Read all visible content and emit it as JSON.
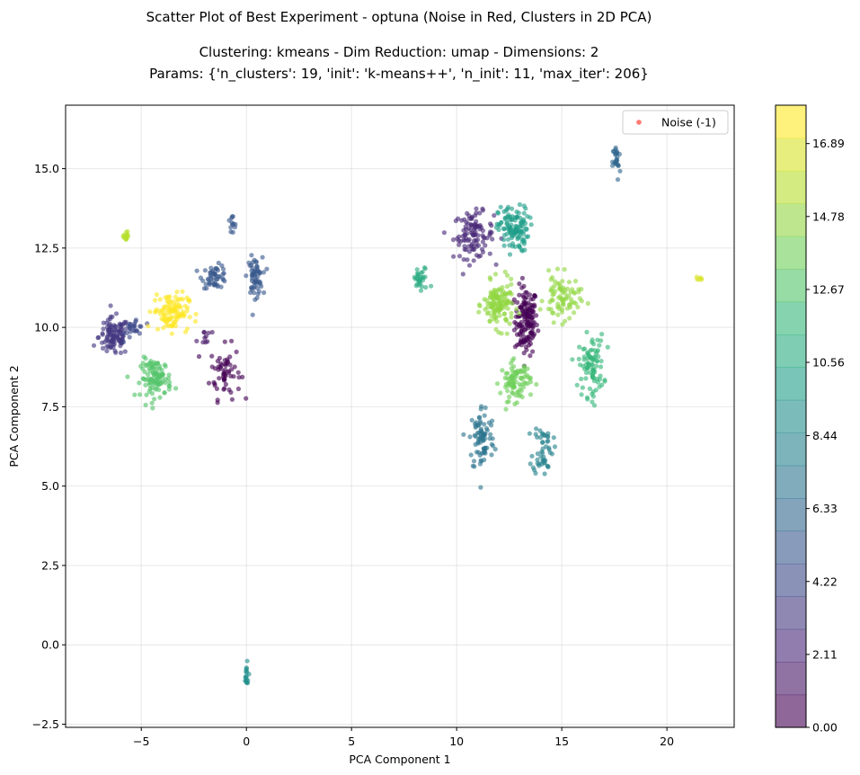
{
  "chart_data": {
    "type": "scatter",
    "title": [
      "Scatter Plot of Best Experiment - optuna (Noise in Red, Clusters in 2D PCA)",
      "Clustering: kmeans - Dim Reduction: umap - Dimensions: 2",
      "Params: {'n_clusters': 19, 'init': 'k-means++', 'n_init': 11, 'max_iter': 206}"
    ],
    "xlabel": "PCA Component 1",
    "ylabel": "PCA Component 2",
    "xlim": [
      -8.6,
      23.2
    ],
    "ylim": [
      -2.6,
      17.0
    ],
    "xticks": [
      -5,
      0,
      5,
      10,
      15,
      20
    ],
    "xtick_labels": [
      "−5",
      "0",
      "5",
      "10",
      "15",
      "20"
    ],
    "yticks": [
      -2.5,
      0.0,
      2.5,
      5.0,
      7.5,
      10.0,
      12.5,
      15.0
    ],
    "ytick_labels": [
      "−2.5",
      "0.0",
      "2.5",
      "5.0",
      "7.5",
      "10.0",
      "12.5",
      "15.0"
    ],
    "grid": true,
    "legend": {
      "position": "top-right",
      "entries": [
        {
          "label": "Noise (-1)",
          "color": "#ff4136"
        }
      ]
    },
    "colorbar": {
      "colormap": "viridis",
      "range": [
        0,
        18
      ],
      "levels": 19,
      "ticks": [
        0.0,
        2.11,
        4.22,
        6.33,
        8.44,
        10.56,
        12.67,
        14.78,
        16.89
      ],
      "tick_labels": [
        "0.00",
        "2.11",
        "4.22",
        "6.33",
        "8.44",
        "10.56",
        "12.67",
        "14.78",
        "16.89"
      ]
    },
    "clusters": [
      {
        "label": 0,
        "center": [
          13.3,
          10.2
        ],
        "spread": [
          0.45,
          0.9
        ],
        "count": 150
      },
      {
        "label": 0,
        "center": [
          -1.0,
          8.6
        ],
        "spread": [
          0.6,
          0.7
        ],
        "count": 60
      },
      {
        "label": 1,
        "center": [
          -2.0,
          9.7
        ],
        "spread": [
          0.3,
          0.3
        ],
        "count": 10
      },
      {
        "label": 2,
        "center": [
          10.8,
          12.9
        ],
        "spread": [
          0.8,
          0.6
        ],
        "count": 110
      },
      {
        "label": 3,
        "center": [
          -6.3,
          9.7
        ],
        "spread": [
          0.6,
          0.5
        ],
        "count": 110
      },
      {
        "label": 4,
        "center": [
          -5.3,
          10.0
        ],
        "spread": [
          0.4,
          0.3
        ],
        "count": 25
      },
      {
        "label": 5,
        "center": [
          -1.5,
          11.6
        ],
        "spread": [
          0.5,
          0.3
        ],
        "count": 50
      },
      {
        "label": 5,
        "center": [
          0.4,
          11.6
        ],
        "spread": [
          0.3,
          0.5
        ],
        "count": 60
      },
      {
        "label": 5,
        "center": [
          -0.7,
          13.2
        ],
        "spread": [
          0.2,
          0.3
        ],
        "count": 12
      },
      {
        "label": 6,
        "center": [
          17.6,
          15.2
        ],
        "spread": [
          0.15,
          0.5
        ],
        "count": 25
      },
      {
        "label": 7,
        "center": [
          11.2,
          6.5
        ],
        "spread": [
          0.5,
          0.9
        ],
        "count": 80
      },
      {
        "label": 8,
        "center": [
          14.1,
          6.2
        ],
        "spread": [
          0.4,
          0.7
        ],
        "count": 50
      },
      {
        "label": 9,
        "center": [
          0.0,
          -1.0
        ],
        "spread": [
          0.1,
          0.35
        ],
        "count": 18
      },
      {
        "label": 10,
        "center": [
          12.7,
          13.1
        ],
        "spread": [
          0.6,
          0.6
        ],
        "count": 120
      },
      {
        "label": 11,
        "center": [
          8.3,
          11.5
        ],
        "spread": [
          0.35,
          0.35
        ],
        "count": 30
      },
      {
        "label": 12,
        "center": [
          16.4,
          8.8
        ],
        "spread": [
          0.5,
          0.8
        ],
        "count": 90
      },
      {
        "label": 13,
        "center": [
          -4.3,
          8.4
        ],
        "spread": [
          0.6,
          0.5
        ],
        "count": 100
      },
      {
        "label": 14,
        "center": [
          12.8,
          8.3
        ],
        "spread": [
          0.6,
          0.5
        ],
        "count": 90
      },
      {
        "label": 15,
        "center": [
          12.0,
          10.7
        ],
        "spread": [
          0.6,
          0.6
        ],
        "count": 130
      },
      {
        "label": 15,
        "center": [
          15.0,
          10.9
        ],
        "spread": [
          0.7,
          0.6
        ],
        "count": 80
      },
      {
        "label": 16,
        "center": [
          -5.7,
          12.9
        ],
        "spread": [
          0.2,
          0.15
        ],
        "count": 14
      },
      {
        "label": 17,
        "center": [
          21.6,
          11.55
        ],
        "spread": [
          0.1,
          0.05
        ],
        "count": 6
      },
      {
        "label": 18,
        "center": [
          -3.6,
          10.5
        ],
        "spread": [
          0.7,
          0.5
        ],
        "count": 110
      }
    ]
  }
}
